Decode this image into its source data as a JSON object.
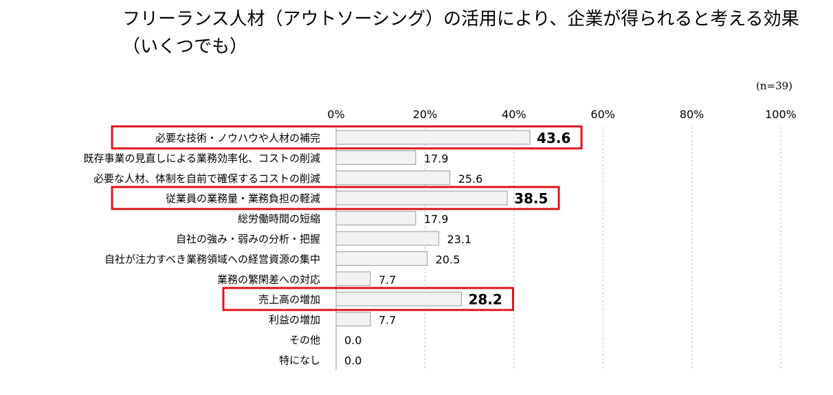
{
  "title": "フリーランス人材（アウトソーシング）の活用により、企業が得られると考える効果（いくつでも）",
  "sample_note": "(n=39)",
  "colors": {
    "bar_fill": "#f2f2f2",
    "bar_stroke": "#999999",
    "grid": "#bdbdbd",
    "highlight": "#e0141e",
    "text": "#000000"
  },
  "chart_data": {
    "type": "bar",
    "orientation": "horizontal",
    "xlim": [
      0,
      100
    ],
    "ticks": [
      "0%",
      "20%",
      "40%",
      "60%",
      "80%",
      "100%"
    ],
    "tick_values": [
      0,
      20,
      40,
      60,
      80,
      100
    ],
    "grid": true,
    "categories": [
      "必要な技術・ノウハウや人材の補完",
      "既存事業の見直しによる業務効率化、コストの削減",
      "必要な人材、体制を自前で確保するコストの削減",
      "従業員の業務量・業務負担の軽減",
      "総労働時間の短縮",
      "自社の強み・弱みの分析・把握",
      "自社が注力すべき業務領域への経営資源の集中",
      "業務の繁閑差への対応",
      "売上高の増加",
      "利益の増加",
      "その他",
      "特になし"
    ],
    "values": [
      43.6,
      17.9,
      25.6,
      38.5,
      17.9,
      23.1,
      20.5,
      7.7,
      28.2,
      7.7,
      0.0,
      0.0
    ],
    "value_labels": [
      "43.6",
      "17.9",
      "25.6",
      "38.5",
      "17.9",
      "23.1",
      "20.5",
      "7.7",
      "28.2",
      "7.7",
      "0.0",
      "0.0"
    ],
    "highlighted": [
      true,
      false,
      false,
      true,
      false,
      false,
      false,
      false,
      true,
      false,
      false,
      false
    ]
  }
}
